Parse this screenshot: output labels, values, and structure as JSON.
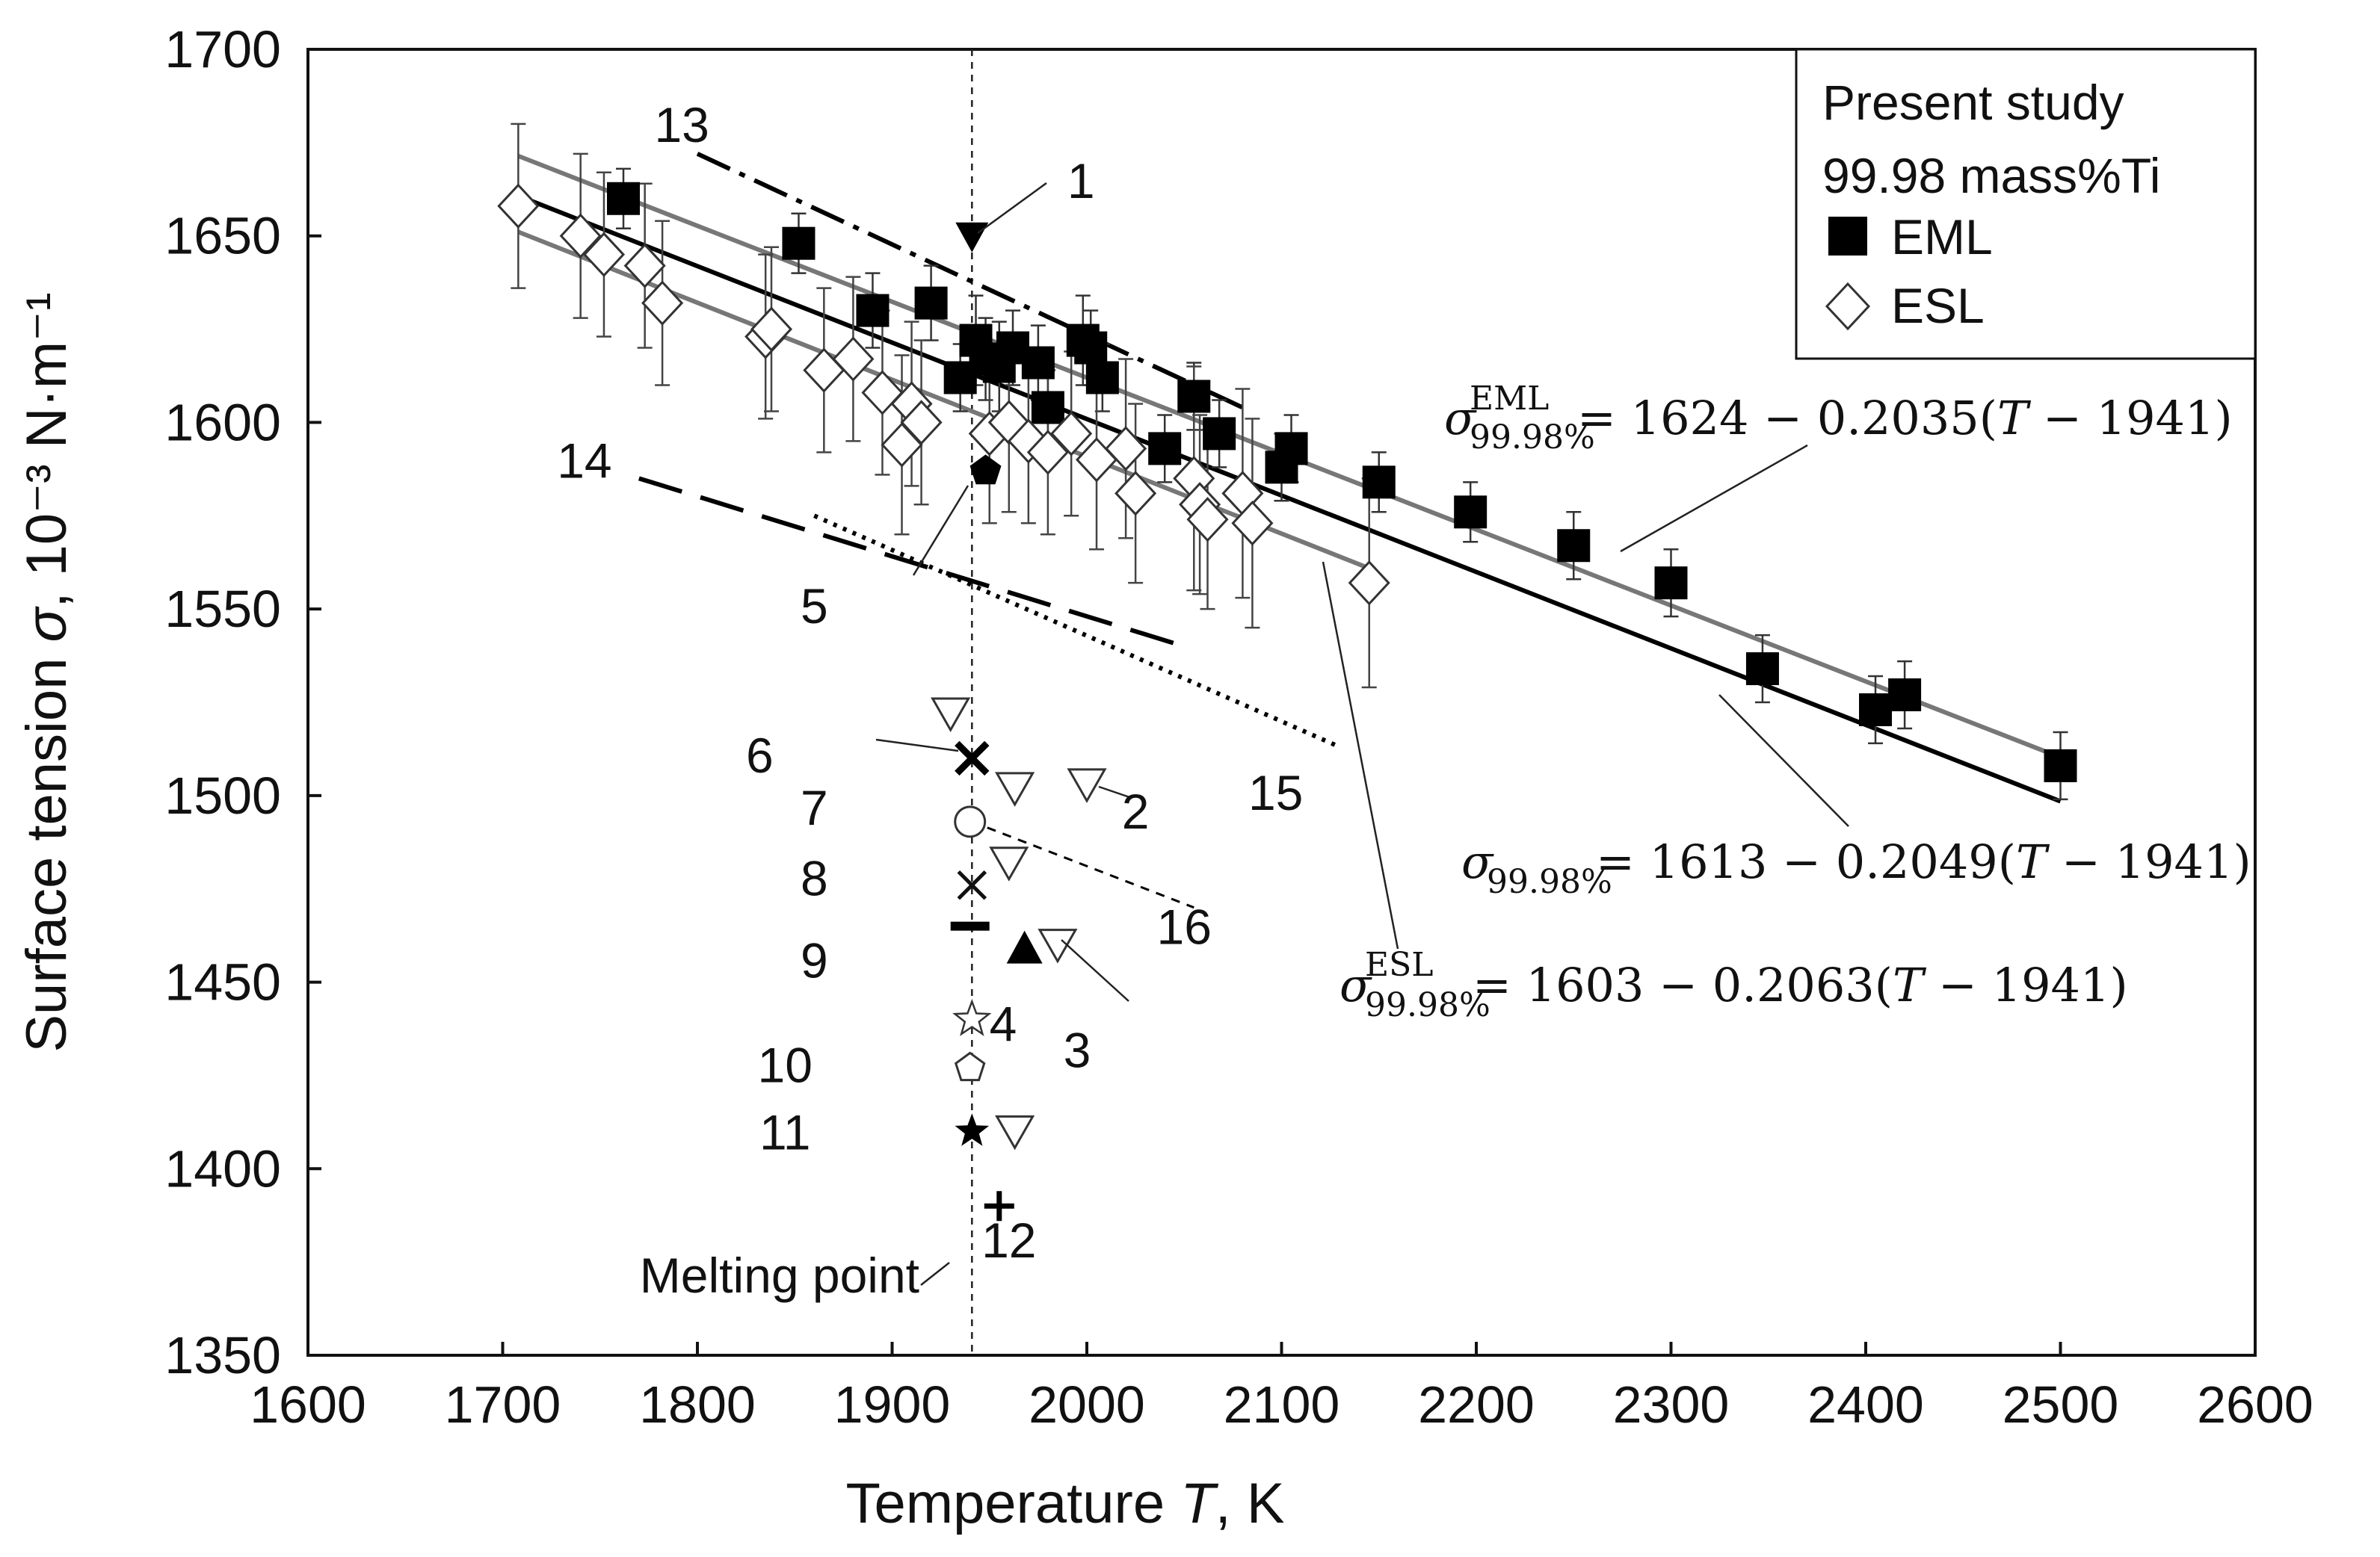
{
  "chart_data": {
    "type": "scatter",
    "xlabel": "Temperature T, K",
    "ylabel": "Surface tension σ, 10⁻³ N·m⁻¹",
    "xlabel_parts": {
      "main": "Temperature ",
      "var": "T",
      "unit": ", K"
    },
    "ylabel_parts": {
      "main": "Surface tension ",
      "var": "σ",
      "unit": ", 10⁻³ N·m⁻¹"
    },
    "xlim": [
      1600,
      2600
    ],
    "ylim": [
      1350,
      1700
    ],
    "xticks": [
      1600,
      1700,
      1800,
      1900,
      2000,
      2100,
      2200,
      2300,
      2400,
      2500,
      2600
    ],
    "yticks": [
      1350,
      1400,
      1450,
      1500,
      1550,
      1600,
      1650,
      1700
    ],
    "xtick_labels": [
      "1600",
      "1700",
      "1800",
      "1900",
      "2000",
      "2100",
      "2200",
      "2300",
      "2400",
      "2500",
      "2600"
    ],
    "ytick_labels": [
      "1350",
      "1400",
      "1450",
      "1500",
      "1550",
      "1600",
      "1650",
      "1700"
    ],
    "melting_point": {
      "T": 1941,
      "label": "Melting point"
    },
    "legend": {
      "title_line1": "Present study",
      "title_line2": "99.98 mass%Ti",
      "entries": [
        {
          "name": "EML",
          "marker": "filled-square"
        },
        {
          "name": "ESL",
          "marker": "open-diamond"
        }
      ]
    },
    "series": [
      {
        "name": "EML",
        "marker": "filled-square",
        "points": [
          [
            1762,
            1660,
            8
          ],
          [
            1852,
            1648,
            8
          ],
          [
            1890,
            1630,
            10
          ],
          [
            1920,
            1632,
            10
          ],
          [
            1935,
            1612,
            9
          ],
          [
            1943,
            1622,
            12
          ],
          [
            1948,
            1617,
            11
          ],
          [
            1955,
            1615,
            12
          ],
          [
            1962,
            1620,
            10
          ],
          [
            1975,
            1616,
            10
          ],
          [
            1980,
            1604,
            10
          ],
          [
            1998,
            1622,
            12
          ],
          [
            2002,
            1620,
            10
          ],
          [
            2008,
            1612,
            9
          ],
          [
            2040,
            1593,
            9
          ],
          [
            2055,
            1607,
            9
          ],
          [
            2068,
            1597,
            9
          ],
          [
            2100,
            1588,
            9
          ],
          [
            2105,
            1593,
            9
          ],
          [
            2150,
            1584,
            8
          ],
          [
            2197,
            1576,
            8
          ],
          [
            2250,
            1567,
            9
          ],
          [
            2300,
            1557,
            9
          ],
          [
            2347,
            1534,
            9
          ],
          [
            2405,
            1523,
            9
          ],
          [
            2420,
            1527,
            9
          ],
          [
            2500,
            1508,
            9
          ]
        ]
      },
      {
        "name": "ESL",
        "marker": "open-diamond",
        "points": [
          [
            1708,
            1658,
            22
          ],
          [
            1740,
            1650,
            22
          ],
          [
            1752,
            1645,
            22
          ],
          [
            1773,
            1642,
            22
          ],
          [
            1782,
            1632,
            22
          ],
          [
            1835,
            1623,
            22
          ],
          [
            1838,
            1625,
            22
          ],
          [
            1865,
            1614,
            22
          ],
          [
            1880,
            1617,
            22
          ],
          [
            1895,
            1608,
            22
          ],
          [
            1905,
            1594,
            24
          ],
          [
            1910,
            1605,
            22
          ],
          [
            1915,
            1600,
            22
          ],
          [
            1950,
            1597,
            24
          ],
          [
            1960,
            1600,
            24
          ],
          [
            1970,
            1595,
            22
          ],
          [
            1980,
            1592,
            22
          ],
          [
            1992,
            1597,
            22
          ],
          [
            2005,
            1590,
            24
          ],
          [
            2020,
            1593,
            24
          ],
          [
            2025,
            1581,
            24
          ],
          [
            2055,
            1585,
            30
          ],
          [
            2058,
            1578,
            24
          ],
          [
            2062,
            1574,
            24
          ],
          [
            2080,
            1581,
            28
          ],
          [
            2085,
            1573,
            28
          ],
          [
            2145,
            1557,
            28
          ]
        ]
      }
    ],
    "fit_lines": [
      {
        "name": "EML fit",
        "color": "#777777",
        "x0": 1708,
        "x1": 2500,
        "a": 1624,
        "b": -0.2035
      },
      {
        "name": "combined fit",
        "color": "#000000",
        "x0": 1708,
        "x1": 2500,
        "a": 1613,
        "b": -0.2049
      },
      {
        "name": "ESL fit",
        "color": "#777777",
        "x0": 1708,
        "x1": 2145,
        "a": 1603,
        "b": -0.2063
      }
    ],
    "equations": [
      {
        "sym": "σ",
        "sup": "EML",
        "sub": "99.98%",
        "rhs_a": " = 1624 − 0.2035(",
        "var": "T",
        "rhs_b": " − 1941)"
      },
      {
        "sym": "σ",
        "sup": "",
        "sub": "99.98%",
        "rhs_a": " = 1613 − 0.2049(",
        "var": "T",
        "rhs_b": " − 1941)"
      },
      {
        "sym": "σ",
        "sup": "ESL",
        "sub": "99.98%",
        "rhs_a": " = 1603 − 0.2063(",
        "var": "T",
        "rhs_b": " − 1941)"
      }
    ],
    "literature_lines": [
      {
        "label": "13",
        "style": "dash-dot",
        "x0": 1800,
        "y0": 1672,
        "x1": 2080,
        "y1": 1604
      },
      {
        "label": "14",
        "style": "long-dash",
        "x0": 1770,
        "y0": 1585,
        "x1": 2050,
        "y1": 1540
      },
      {
        "label": "15",
        "style": "dotted",
        "x0": 1860,
        "y0": 1575,
        "x1": 2130,
        "y1": 1513
      },
      {
        "label": "16",
        "style": "short-dash",
        "x0": 1941,
        "y0": 1493,
        "x1": 2055,
        "y1": 1470
      }
    ],
    "literature_points": [
      {
        "label": "1",
        "marker": "filled-triangle-down",
        "x": 1941,
        "y": 1650
      },
      {
        "label": "2",
        "marker": "open-triangle-down",
        "x": 2000,
        "y": 1503
      },
      {
        "label": "3",
        "marker": "open-triangle-down",
        "x": 1985,
        "y": 1460
      },
      {
        "label": "3",
        "marker": "open-triangle-down",
        "x": 1930,
        "y": 1522
      },
      {
        "label": "3",
        "marker": "open-triangle-down",
        "x": 1963,
        "y": 1502
      },
      {
        "label": "3",
        "marker": "open-triangle-down",
        "x": 1960,
        "y": 1482
      },
      {
        "label": "3",
        "marker": "open-triangle-down",
        "x": 1963,
        "y": 1410
      },
      {
        "label": "3",
        "marker": "filled-triangle-up",
        "x": 1968,
        "y": 1459
      },
      {
        "label": "4",
        "marker": "open-star",
        "x": 1941,
        "y": 1440
      },
      {
        "label": "5",
        "marker": "filled-pentagon",
        "x": 1948,
        "y": 1587
      },
      {
        "label": "6",
        "marker": "bold-cross",
        "x": 1941,
        "y": 1510
      },
      {
        "label": "7",
        "marker": "open-circle",
        "x": 1940,
        "y": 1493
      },
      {
        "label": "8",
        "marker": "cross",
        "x": 1941,
        "y": 1476
      },
      {
        "label": "9",
        "marker": "dash",
        "x": 1940,
        "y": 1465
      },
      {
        "label": "10",
        "marker": "open-pentagon",
        "x": 1940,
        "y": 1427
      },
      {
        "label": "11",
        "marker": "filled-star",
        "x": 1941,
        "y": 1410
      },
      {
        "label": "12",
        "marker": "plus",
        "x": 1955,
        "y": 1390
      }
    ],
    "annotation_labels": [
      {
        "text": "1",
        "x": 1997,
        "y": 1665
      },
      {
        "text": "2",
        "x": 2025,
        "y": 1496
      },
      {
        "text": "3",
        "x": 1995,
        "y": 1432
      },
      {
        "text": "4",
        "x": 1957,
        "y": 1439
      },
      {
        "text": "5",
        "x": 1860,
        "y": 1551
      },
      {
        "text": "6",
        "x": 1832,
        "y": 1511
      },
      {
        "text": "7",
        "x": 1860,
        "y": 1497
      },
      {
        "text": "8",
        "x": 1860,
        "y": 1478
      },
      {
        "text": "9",
        "x": 1860,
        "y": 1456
      },
      {
        "text": "10",
        "x": 1845,
        "y": 1428
      },
      {
        "text": "11",
        "x": 1845,
        "y": 1410
      },
      {
        "text": "12",
        "x": 1960,
        "y": 1381
      },
      {
        "text": "13",
        "x": 1792,
        "y": 1680
      },
      {
        "text": "14",
        "x": 1742,
        "y": 1590
      },
      {
        "text": "15",
        "x": 2097,
        "y": 1501
      },
      {
        "text": "16",
        "x": 2050,
        "y": 1465
      }
    ]
  }
}
